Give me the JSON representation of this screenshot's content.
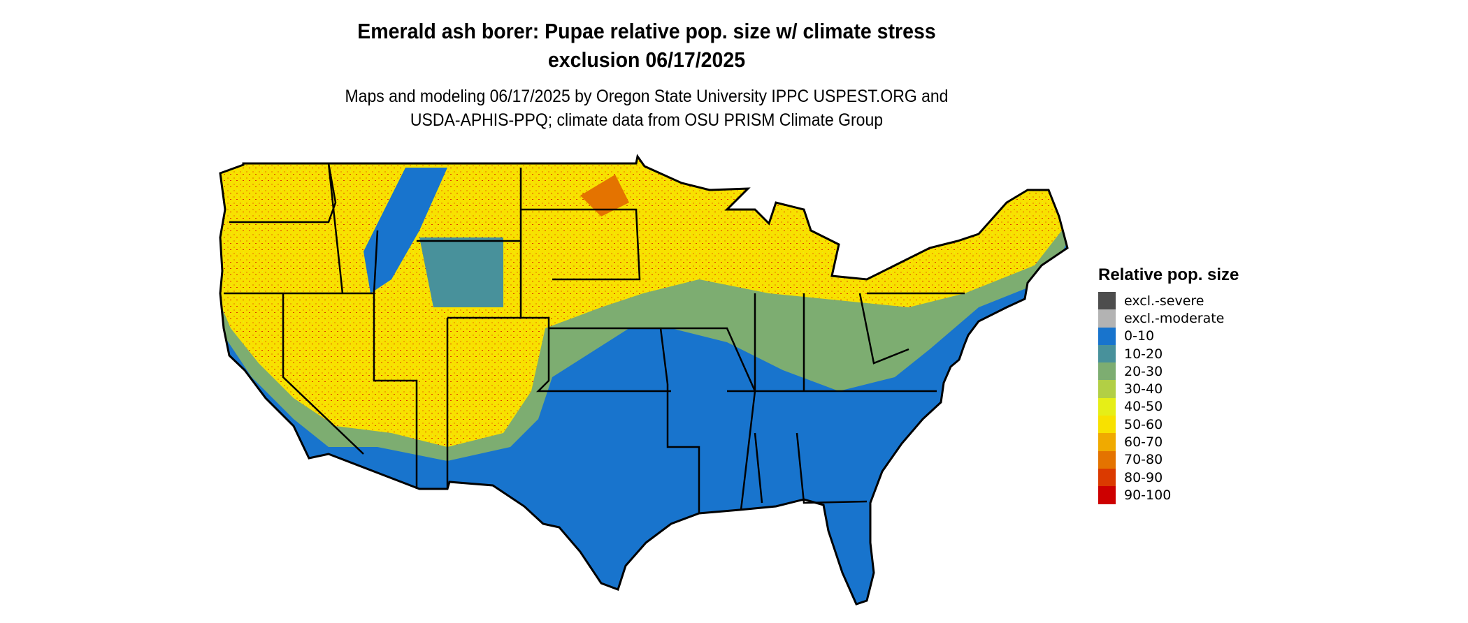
{
  "title": {
    "line1": "Emerald ash borer: Pupae relative pop. size w/ climate stress",
    "line2": "exclusion 06/17/2025"
  },
  "subtitle": {
    "line1": "Maps and modeling 06/17/2025 by Oregon State University IPPC USPEST.ORG and",
    "line2": "USDA-APHIS-PPQ; climate data from OSU PRISM Climate Group"
  },
  "map": {
    "region": "Contiguous United States",
    "background_class_color": "#1874CD",
    "dominant_classes": {
      "south_and_southeast": "0-10",
      "north_and_west_mountains": "50-60"
    }
  },
  "legend": {
    "title": "Relative pop. size",
    "items": [
      {
        "label": "excl.-severe",
        "color": "#4D4D4D"
      },
      {
        "label": "excl.-moderate",
        "color": "#B3B3B3"
      },
      {
        "label": "0-10",
        "color": "#1874CD"
      },
      {
        "label": "10-20",
        "color": "#48919B"
      },
      {
        "label": "20-30",
        "color": "#7DAD71"
      },
      {
        "label": "30-40",
        "color": "#B2CF45"
      },
      {
        "label": "40-50",
        "color": "#E6EE17"
      },
      {
        "label": "50-60",
        "color": "#F8E100"
      },
      {
        "label": "60-70",
        "color": "#F0AA00"
      },
      {
        "label": "70-80",
        "color": "#E47300"
      },
      {
        "label": "80-90",
        "color": "#DB3A00"
      },
      {
        "label": "90-100",
        "color": "#CD0000"
      }
    ]
  }
}
